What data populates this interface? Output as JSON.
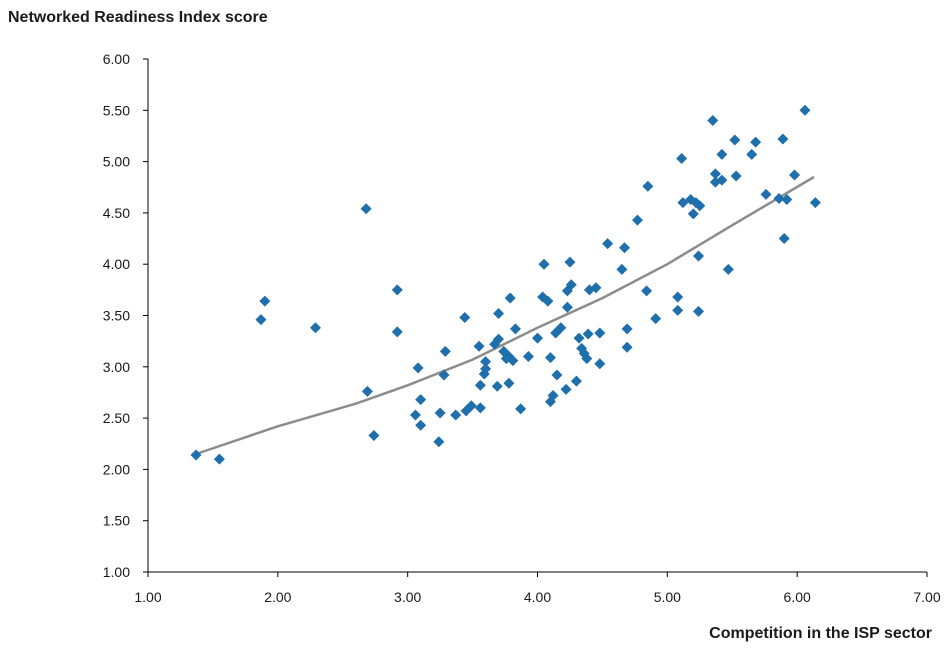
{
  "chart_data": {
    "type": "scatter",
    "ylabel": "Networked Readiness Index score",
    "xlabel": "Competition in the ISP sector",
    "xlim": [
      1.0,
      7.0
    ],
    "ylim": [
      1.0,
      6.0
    ],
    "x_ticks": [
      "1.00",
      "2.00",
      "3.00",
      "4.00",
      "5.00",
      "6.00",
      "7.00"
    ],
    "y_ticks": [
      "1.00",
      "1.50",
      "2.00",
      "2.50",
      "3.00",
      "3.50",
      "4.00",
      "4.50",
      "5.00",
      "5.50",
      "6.00"
    ],
    "grid": false,
    "marker_color": "#1f6fad",
    "trendline_color": "#8c8c8c",
    "trendline": [
      [
        1.37,
        2.15
      ],
      [
        2.0,
        2.42
      ],
      [
        2.6,
        2.64
      ],
      [
        3.0,
        2.82
      ],
      [
        3.5,
        3.07
      ],
      [
        4.0,
        3.38
      ],
      [
        4.5,
        3.67
      ],
      [
        5.0,
        4.0
      ],
      [
        5.5,
        4.38
      ],
      [
        6.13,
        4.85
      ]
    ],
    "points": [
      [
        1.37,
        2.14
      ],
      [
        1.55,
        2.1
      ],
      [
        1.87,
        3.46
      ],
      [
        1.9,
        3.64
      ],
      [
        2.29,
        3.38
      ],
      [
        2.68,
        4.54
      ],
      [
        2.69,
        2.76
      ],
      [
        2.74,
        2.33
      ],
      [
        2.92,
        3.75
      ],
      [
        2.92,
        3.34
      ],
      [
        3.06,
        2.53
      ],
      [
        3.08,
        2.99
      ],
      [
        3.1,
        2.43
      ],
      [
        3.1,
        2.68
      ],
      [
        3.24,
        2.27
      ],
      [
        3.25,
        2.55
      ],
      [
        3.28,
        2.92
      ],
      [
        3.29,
        3.15
      ],
      [
        3.37,
        2.53
      ],
      [
        3.44,
        3.48
      ],
      [
        3.45,
        2.57
      ],
      [
        3.49,
        2.62
      ],
      [
        3.55,
        3.2
      ],
      [
        3.56,
        2.6
      ],
      [
        3.56,
        2.82
      ],
      [
        3.59,
        2.93
      ],
      [
        3.6,
        2.98
      ],
      [
        3.6,
        3.05
      ],
      [
        3.67,
        3.22
      ],
      [
        3.69,
        2.81
      ],
      [
        3.7,
        3.52
      ],
      [
        3.7,
        3.27
      ],
      [
        3.74,
        3.15
      ],
      [
        3.76,
        3.08
      ],
      [
        3.78,
        3.1
      ],
      [
        3.78,
        2.84
      ],
      [
        3.79,
        3.67
      ],
      [
        3.81,
        3.06
      ],
      [
        3.83,
        3.37
      ],
      [
        3.87,
        2.59
      ],
      [
        3.93,
        3.1
      ],
      [
        4.0,
        3.28
      ],
      [
        4.04,
        3.68
      ],
      [
        4.05,
        4.0
      ],
      [
        4.08,
        3.64
      ],
      [
        4.1,
        2.66
      ],
      [
        4.1,
        3.09
      ],
      [
        4.12,
        2.72
      ],
      [
        4.14,
        3.33
      ],
      [
        4.15,
        2.92
      ],
      [
        4.18,
        3.38
      ],
      [
        4.22,
        2.78
      ],
      [
        4.23,
        3.58
      ],
      [
        4.23,
        3.74
      ],
      [
        4.25,
        4.02
      ],
      [
        4.26,
        3.8
      ],
      [
        4.3,
        2.86
      ],
      [
        4.32,
        3.28
      ],
      [
        4.34,
        3.18
      ],
      [
        4.36,
        3.13
      ],
      [
        4.38,
        3.08
      ],
      [
        4.39,
        3.32
      ],
      [
        4.4,
        3.75
      ],
      [
        4.45,
        3.77
      ],
      [
        4.48,
        3.03
      ],
      [
        4.48,
        3.33
      ],
      [
        4.54,
        4.2
      ],
      [
        4.65,
        3.95
      ],
      [
        4.67,
        4.16
      ],
      [
        4.69,
        3.37
      ],
      [
        4.69,
        3.19
      ],
      [
        4.77,
        4.43
      ],
      [
        4.84,
        3.74
      ],
      [
        4.85,
        4.76
      ],
      [
        4.91,
        3.47
      ],
      [
        5.08,
        3.55
      ],
      [
        5.08,
        3.68
      ],
      [
        5.11,
        5.03
      ],
      [
        5.12,
        4.6
      ],
      [
        5.18,
        4.63
      ],
      [
        5.2,
        4.49
      ],
      [
        5.22,
        4.6
      ],
      [
        5.24,
        4.08
      ],
      [
        5.24,
        3.54
      ],
      [
        5.25,
        4.57
      ],
      [
        5.35,
        5.4
      ],
      [
        5.37,
        4.8
      ],
      [
        5.37,
        4.88
      ],
      [
        5.42,
        5.07
      ],
      [
        5.42,
        4.82
      ],
      [
        5.47,
        3.95
      ],
      [
        5.52,
        5.21
      ],
      [
        5.53,
        4.86
      ],
      [
        5.65,
        5.07
      ],
      [
        5.68,
        5.19
      ],
      [
        5.76,
        4.68
      ],
      [
        5.86,
        4.64
      ],
      [
        5.89,
        5.22
      ],
      [
        5.9,
        4.25
      ],
      [
        5.92,
        4.63
      ],
      [
        5.98,
        4.87
      ],
      [
        6.06,
        5.5
      ],
      [
        6.14,
        4.6
      ]
    ]
  }
}
